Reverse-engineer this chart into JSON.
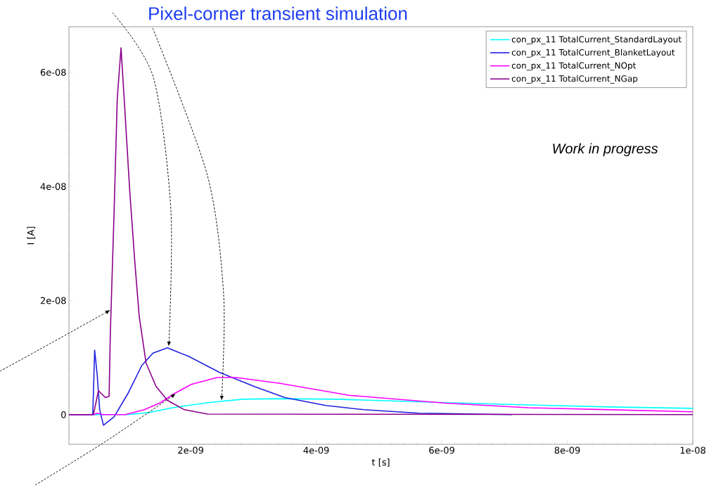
{
  "chart_data": {
    "type": "line",
    "title": "Pixel-corner transient simulation",
    "xlabel": "t [s]",
    "ylabel": "I [A]",
    "xlim": [
      6e-11,
      1e-08
    ],
    "ylim": [
      -5.2e-09,
      6.8e-08
    ],
    "xticks": [
      {
        "value": 2e-09,
        "label": "2e-09"
      },
      {
        "value": 4e-09,
        "label": "4e-09"
      },
      {
        "value": 6e-09,
        "label": "6e-09"
      },
      {
        "value": 8e-09,
        "label": "8e-09"
      },
      {
        "value": 1e-08,
        "label": "1e-08"
      }
    ],
    "yticks": [
      0,
      {
        "value": 2e-08,
        "label": "2e-08"
      },
      {
        "value": 4e-08,
        "label": "4e-08"
      },
      {
        "value": 6e-08,
        "label": "6e-08"
      }
    ],
    "legend": "top right",
    "annotations": [
      "Work in progress"
    ],
    "series": [
      {
        "name": "con_px_11 TotalCurrent_StandardLayout",
        "color": "#00ffff",
        "x": [
          6e-11,
          1e-09,
          1.34e-09,
          1.71e-09,
          2.27e-09,
          2.83e-09,
          3.39e-09,
          4.33e-09,
          6.07e-09,
          7.38e-09,
          8.7e-09,
          1e-08
        ],
        "values": [
          0,
          0,
          3.7e-10,
          1.2e-09,
          2.1e-09,
          2.7e-09,
          2.8e-09,
          2.7e-09,
          2.1e-09,
          1.7e-09,
          1.35e-09,
          1.1e-09
        ]
      },
      {
        "name": "con_px_11 TotalCurrent_BlanketLayout",
        "color": "#2020e0",
        "x": [
          6e-11,
          4.4e-10,
          4.7e-10,
          5.1e-10,
          5.5e-10,
          6.1e-10,
          7.8e-10,
          1e-09,
          1.22e-09,
          1.4e-09,
          1.63e-09,
          1.97e-09,
          2.46e-09,
          3.02e-09,
          3.5e-09,
          4.15e-09,
          4.76e-09,
          5.64e-09,
          7.12e-09
        ],
        "values": [
          0,
          0,
          1.13e-08,
          7e-09,
          8.6e-10,
          -1.85e-09,
          -3.7e-10,
          3.7e-09,
          8.6e-09,
          1.08e-08,
          1.17e-08,
          1.02e-08,
          7.4e-09,
          4.9e-09,
          3e-09,
          1.6e-09,
          8.6e-10,
          2.5e-10,
          0
        ]
      },
      {
        "name": "con_px_11 TotalCurrent_NOpt",
        "color": "#ff00ff",
        "x": [
          6e-11,
          4.5e-10,
          5.1e-10,
          6e-10,
          9.6e-10,
          1.26e-09,
          1.52e-09,
          1.74e-09,
          2.01e-09,
          2.42e-09,
          2.72e-09,
          3.42e-09,
          4.52e-09,
          6.07e-09,
          7.38e-09,
          8.7e-09,
          1e-08
        ],
        "values": [
          0,
          0,
          2.5e-10,
          0,
          0,
          8.6e-10,
          2.1e-09,
          3.7e-09,
          5.3e-09,
          6.5e-09,
          6.5e-09,
          5.5e-09,
          3.4e-09,
          2e-09,
          1.2e-09,
          8.6e-10,
          5e-10
        ]
      },
      {
        "name": "con_px_11 TotalCurrent_NGap",
        "color": "#8b008b",
        "x": [
          6e-11,
          4.5e-10,
          5.3e-10,
          6.4e-10,
          7e-10,
          7.2e-10,
          7.8e-10,
          8.3e-10,
          8.9e-10,
          9.4e-10,
          1.03e-09,
          1.11e-09,
          1.18e-09,
          1.29e-09,
          1.45e-09,
          1.63e-09,
          1.9e-09,
          2.27e-09,
          1e-08
        ],
        "values": [
          0,
          0,
          4.2e-09,
          3e-09,
          3.2e-09,
          1.44e-08,
          3.57e-08,
          5.54e-08,
          6.43e-08,
          5.54e-08,
          3.9e-08,
          2.67e-08,
          1.72e-08,
          9e-09,
          4.9e-09,
          2.5e-09,
          8.6e-10,
          1e-10,
          0
        ]
      }
    ]
  }
}
